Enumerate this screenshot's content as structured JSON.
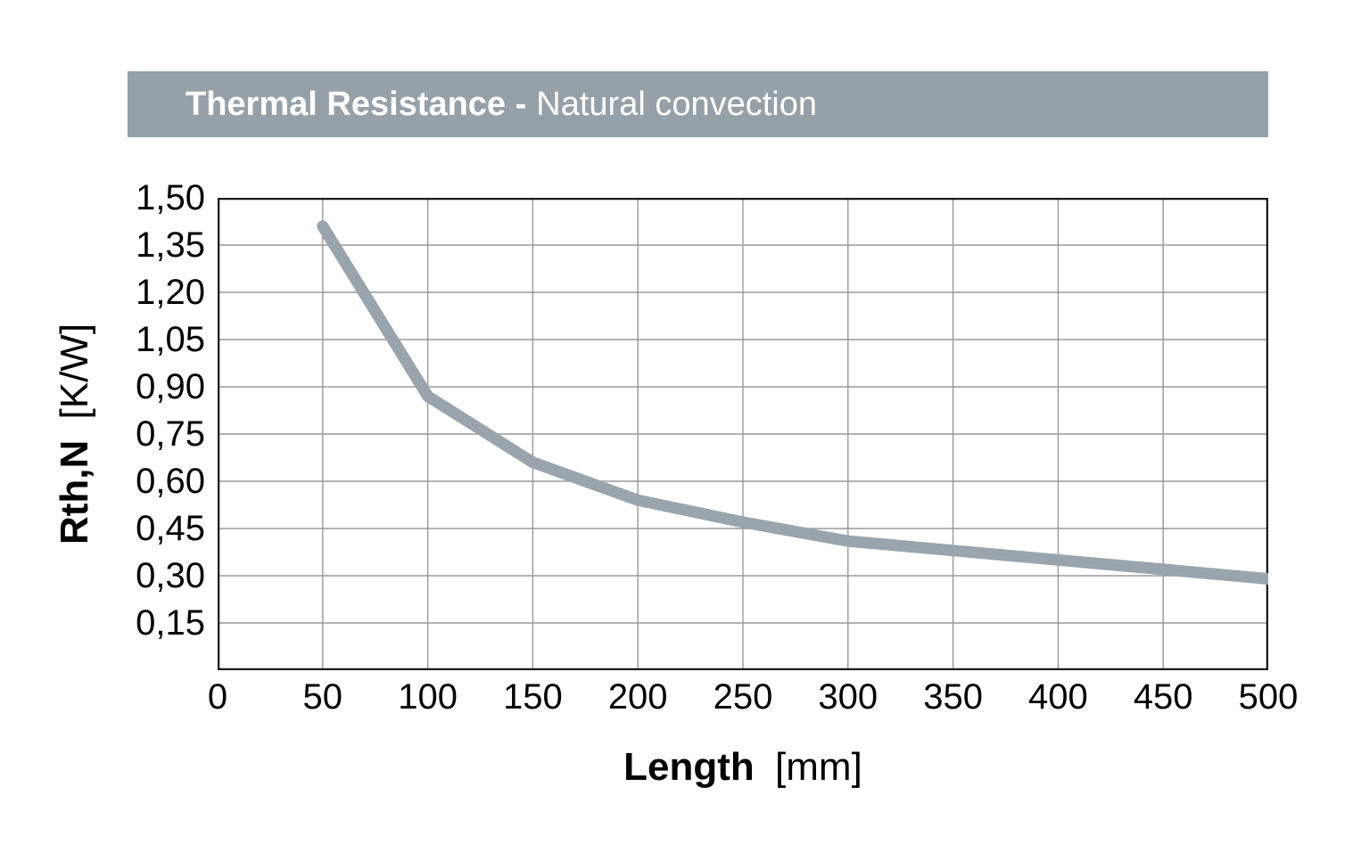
{
  "title": {
    "bold_part": "Thermal Resistance -",
    "regular_part": "Natural convection"
  },
  "colors": {
    "banner_bg": "#96A0A8",
    "banner_text": "#FFFFFF",
    "curve": "#99A4AD",
    "grid": "#999999",
    "frame": "#1A1A1A",
    "tick_text": "#000000"
  },
  "chart_data": {
    "type": "line",
    "title": "Thermal Resistance - Natural convection",
    "xlabel": "Length [mm]",
    "ylabel": "Rth,N [K/W]",
    "xlabel_bold": "Length",
    "xlabel_unit": "[mm]",
    "ylabel_bold": "Rth,N",
    "ylabel_unit": "[K/W]",
    "xlim": [
      0,
      500
    ],
    "ylim": [
      0,
      1.5
    ],
    "x_tick_values": [
      0,
      50,
      100,
      150,
      200,
      250,
      300,
      350,
      400,
      450,
      500
    ],
    "x_tick_labels": [
      "0",
      "50",
      "100",
      "150",
      "200",
      "250",
      "300",
      "350",
      "400",
      "450",
      "500"
    ],
    "y_tick_values": [
      1.5,
      1.35,
      1.2,
      1.05,
      0.9,
      0.75,
      0.6,
      0.45,
      0.3,
      0.15
    ],
    "y_tick_labels": [
      "1,50",
      "1,35",
      "1,20",
      "1,05",
      "0,90",
      "0,75",
      "0,60",
      "0,45",
      "0,30",
      "0,15"
    ],
    "grid": true,
    "legend_position": "none",
    "decimal_separator": ",",
    "line_width": 13,
    "series": [
      {
        "name": "Rth,N natural convection",
        "x": [
          50,
          100,
          150,
          200,
          250,
          300,
          350,
          400,
          450,
          500
        ],
        "values": [
          1.41,
          0.87,
          0.66,
          0.54,
          0.47,
          0.41,
          0.38,
          0.35,
          0.32,
          0.29
        ]
      }
    ]
  }
}
